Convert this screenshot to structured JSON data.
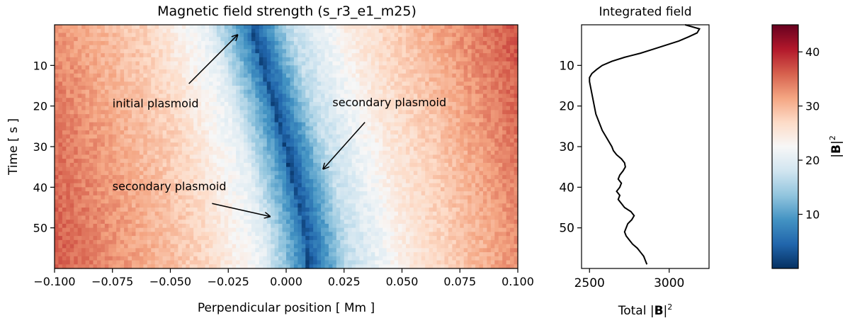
{
  "chart_data": [
    {
      "type": "heatmap",
      "title": "Magnetic field strength (s_r3_e1_m25)",
      "xlabel": "Perpendicular position [ Mm ]",
      "ylabel": "Time [ s ]",
      "xlim": [
        -0.1,
        0.1
      ],
      "ylim": [
        60,
        0
      ],
      "xticks": [
        -0.1,
        -0.075,
        -0.05,
        -0.025,
        0.0,
        0.025,
        0.05,
        0.075,
        0.1
      ],
      "xtick_labels": [
        "−0.100",
        "−0.075",
        "−0.050",
        "−0.025",
        "0.000",
        "0.025",
        "0.050",
        "0.075",
        "0.100"
      ],
      "yticks": [
        10,
        20,
        30,
        40,
        50
      ],
      "ytick_labels": [
        "10",
        "20",
        "30",
        "40",
        "50"
      ],
      "colormap": "RdBu_r",
      "value_range": [
        0,
        45
      ],
      "minimum_track": [
        {
          "t": 0,
          "x": -0.016
        },
        {
          "t": 10,
          "x": -0.011
        },
        {
          "t": 20,
          "x": -0.006
        },
        {
          "t": 30,
          "x": -0.001
        },
        {
          "t": 40,
          "x": 0.003
        },
        {
          "t": 50,
          "x": 0.007
        },
        {
          "t": 60,
          "x": 0.009
        }
      ],
      "annotations": [
        {
          "text": "initial plasmoid",
          "text_at": [
            -0.075,
            19.3
          ],
          "arrow_from": [
            -0.042,
            14.5
          ],
          "arrow_to": [
            -0.021,
            2.5
          ]
        },
        {
          "text": "secondary plasmoid",
          "text_at": [
            0.02,
            19.0
          ],
          "arrow_from": [
            0.034,
            24.0
          ],
          "arrow_to": [
            0.016,
            35.5
          ]
        },
        {
          "text": "secondary plasmoid",
          "text_at": [
            -0.075,
            39.7
          ],
          "arrow_from": [
            -0.032,
            44.0
          ],
          "arrow_to": [
            -0.007,
            47.2
          ]
        }
      ]
    },
    {
      "type": "line",
      "title": "Integrated field",
      "xlabel_prefix": "Total |",
      "xlabel_bold": "B",
      "xlabel_suffix": "|",
      "xlabel_sup": "2",
      "xlim": [
        2450,
        3250
      ],
      "ylim": [
        60,
        0
      ],
      "xticks": [
        2500,
        3000
      ],
      "xtick_labels": [
        "2500",
        "3000"
      ],
      "yticks": [
        10,
        20,
        30,
        40,
        50
      ],
      "ytick_labels": [
        "10",
        "20",
        "30",
        "40",
        "50"
      ],
      "series": [
        {
          "x": [
            3100,
            3190,
            3175,
            3120,
            3060,
            2980,
            2900,
            2820,
            2720,
            2640,
            2580,
            2545,
            2515,
            2500,
            2500,
            2510,
            2520,
            2530,
            2540,
            2560,
            2580,
            2610,
            2640,
            2650,
            2670,
            2700,
            2720,
            2725,
            2710,
            2690,
            2680,
            2700,
            2690,
            2670,
            2690,
            2680,
            2700,
            2720,
            2760,
            2780,
            2765,
            2740,
            2730,
            2720,
            2730,
            2750,
            2770,
            2800,
            2820,
            2840,
            2850,
            2860
          ],
          "y": [
            0,
            1,
            2,
            3,
            4,
            5,
            6,
            7,
            8,
            9,
            10,
            11,
            12,
            13,
            14,
            16,
            18,
            20,
            22,
            24,
            26,
            28,
            30,
            31,
            32,
            33,
            34,
            35,
            36,
            37,
            38,
            39,
            40,
            41,
            42,
            43,
            44,
            45,
            46,
            47,
            48,
            49,
            50,
            51,
            52,
            53,
            54,
            55,
            56,
            57,
            58,
            59
          ]
        }
      ]
    },
    {
      "type": "colorbar",
      "label_main": "|",
      "label_bold": "B",
      "label_suffix": "|",
      "label_sup": "2",
      "range": [
        0,
        45
      ],
      "ticks": [
        10,
        20,
        30,
        40
      ],
      "tick_labels": [
        "10",
        "20",
        "30",
        "40"
      ],
      "colormap": "RdBu_r"
    }
  ]
}
